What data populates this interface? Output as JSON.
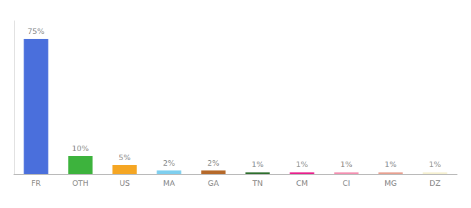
{
  "chart_data": {
    "type": "bar",
    "categories": [
      "FR",
      "OTH",
      "US",
      "MA",
      "GA",
      "TN",
      "CM",
      "CI",
      "MG",
      "DZ"
    ],
    "values": [
      75,
      10,
      5,
      2,
      2,
      1,
      1,
      1,
      1,
      1
    ],
    "value_labels": [
      "75%",
      "10%",
      "5%",
      "2%",
      "2%",
      "1%",
      "1%",
      "1%",
      "1%",
      "1%"
    ],
    "colors": [
      "#4a6fdc",
      "#3db33d",
      "#f5a623",
      "#7ecfef",
      "#b5692a",
      "#2d6e2d",
      "#e91e8c",
      "#f48fb1",
      "#e8a090",
      "#f5f0d0"
    ],
    "ylim": [
      0,
      85
    ],
    "grid": false,
    "data_labels": true,
    "tick_labels": "x"
  }
}
